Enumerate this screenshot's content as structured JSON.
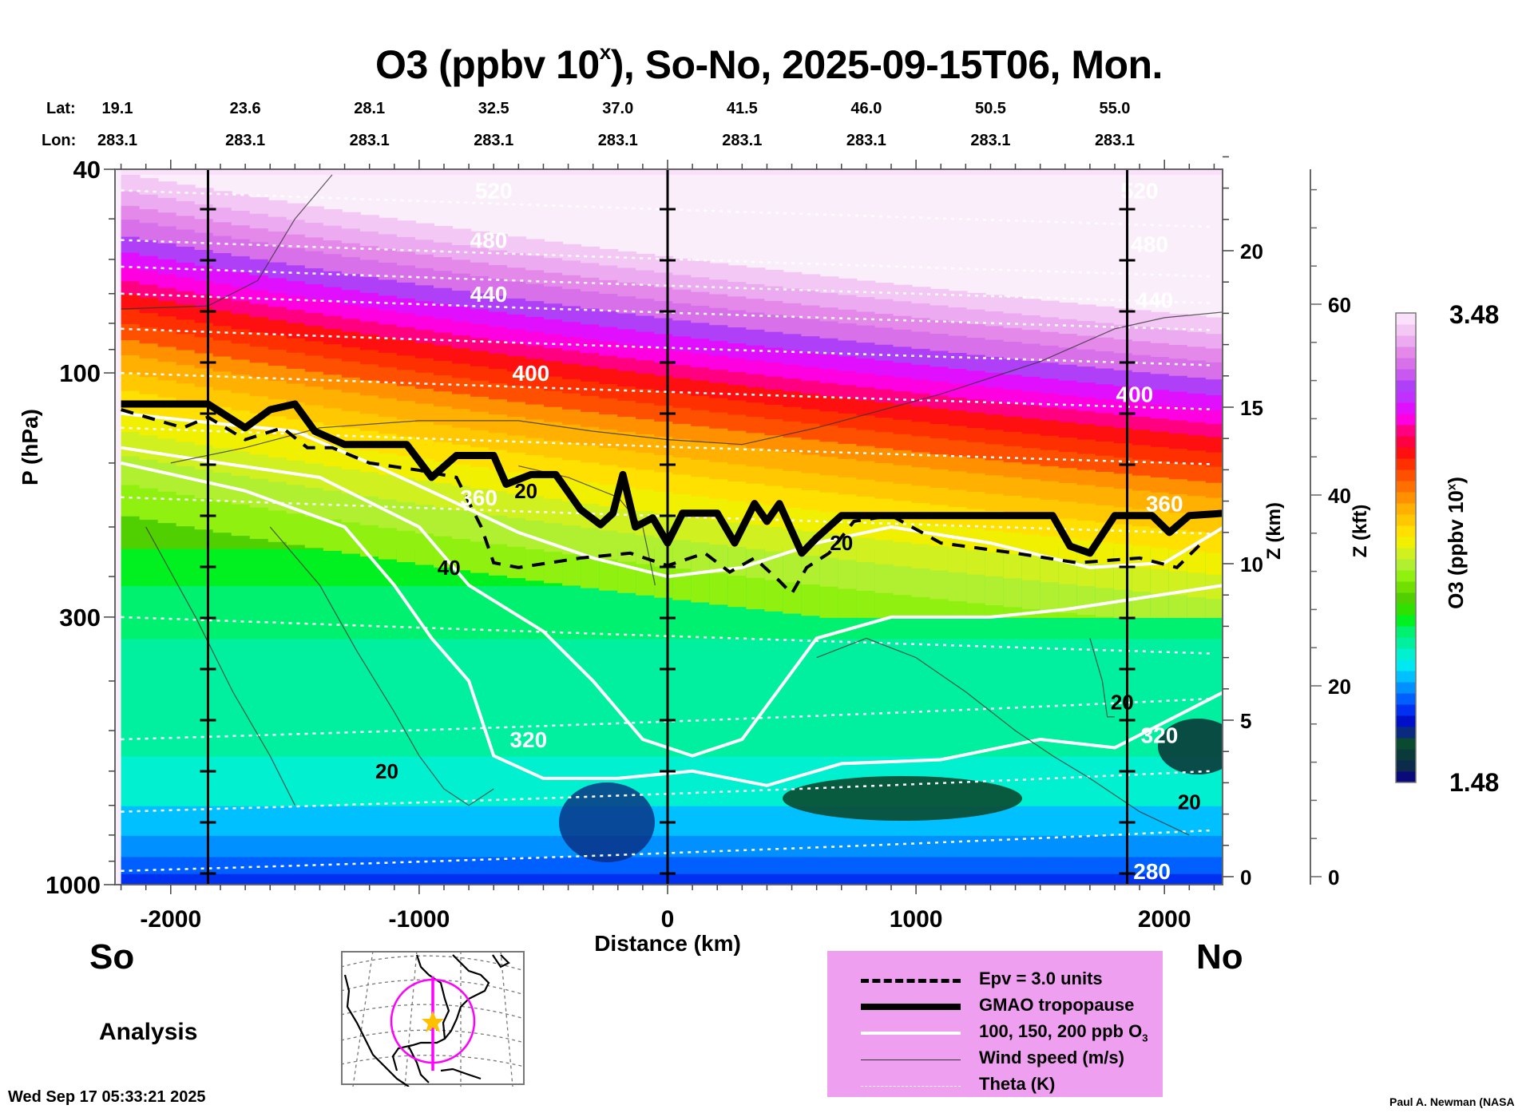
{
  "chart_data": {
    "type": "heatmap",
    "title": "O3 (ppbv 10^x), So-No, 2025-09-15T06, Mon.",
    "title_parts": {
      "main": "O3 (ppbv 10",
      "sup": "x",
      "rest": "), So-No, 2025-09-15T06, Mon."
    },
    "xlabel": "Distance (km)",
    "ylabel": "P (hPa)",
    "y2label": "Z (km)",
    "y3label": "Z (kft)",
    "colorbar_label_main": "O3 (ppbv 10",
    "colorbar_label_sup": "x",
    "colorbar_label_end": ")",
    "xlim": [
      -2200,
      2240
    ],
    "ylim_hpa": [
      1000,
      40
    ],
    "x_ticks": [
      -2000,
      -1000,
      0,
      1000,
      2000
    ],
    "x_tick_labels": [
      "-2000",
      "-1000",
      "0",
      "1000",
      "2000"
    ],
    "y_ticks_hpa": [
      40,
      100,
      300,
      1000
    ],
    "y_tick_labels": [
      "40",
      "100",
      "300",
      "1000"
    ],
    "z_km_ticks": [
      0,
      5,
      10,
      15,
      20
    ],
    "z_km_tick_labels": [
      "0",
      "5",
      "10",
      "15",
      "20"
    ],
    "z_kft_ticks": [
      0,
      20,
      40,
      60
    ],
    "z_kft_tick_labels": [
      "0",
      "20",
      "40",
      "60"
    ],
    "colorbar": {
      "min": 1.48,
      "max": 3.48,
      "min_label": "1.48",
      "max_label": "3.48",
      "colors": [
        "#0a0a7a",
        "#0c2a4a",
        "#0a3a3a",
        "#0a4a30",
        "#0a2a80",
        "#0010c8",
        "#0030f0",
        "#0060ff",
        "#0090ff",
        "#00c0ff",
        "#00e8f0",
        "#00f0d0",
        "#00f0a0",
        "#00f070",
        "#00f020",
        "#30e000",
        "#50d000",
        "#70e000",
        "#90f010",
        "#b0f030",
        "#d0f020",
        "#f0f000",
        "#ffe000",
        "#ffc800",
        "#ffb000",
        "#ff9000",
        "#ff7000",
        "#ff5000",
        "#ff3000",
        "#ff1010",
        "#ff0040",
        "#ff0080",
        "#ff00e0",
        "#e010ff",
        "#c030ff",
        "#b040f8",
        "#c858f0",
        "#d870ea",
        "#e488ea",
        "#ecaaf0",
        "#f4c8f4",
        "#fae0fa"
      ]
    },
    "lat_row_label": "Lat:",
    "lon_row_label": "Lon:",
    "lat_values": [
      "19.1",
      "23.6",
      "28.1",
      "32.5",
      "37.0",
      "41.5",
      "46.0",
      "50.5",
      "55.0"
    ],
    "lon_values": [
      "283.1",
      "283.1",
      "283.1",
      "283.1",
      "283.1",
      "283.1",
      "283.1",
      "283.1",
      "283.1"
    ],
    "latlon_distance_km": [
      -2200,
      -1700,
      -1200,
      -700,
      -200,
      300,
      800,
      1300,
      1800
    ],
    "vertical_marker_lines_km": [
      -1850,
      0,
      1850
    ],
    "theta_contours_K": [
      {
        "value": 280,
        "label": "280",
        "pressure_hpa": 940
      },
      {
        "value": 300,
        "label": "",
        "pressure_hpa": 720
      },
      {
        "value": 320,
        "label": "320",
        "pressure_hpa": 520
      },
      {
        "value": 340,
        "label": "",
        "pressure_hpa": 300
      },
      {
        "value": 360,
        "label": "360",
        "pressure_hpa": 175
      },
      {
        "value": 380,
        "label": "",
        "pressure_hpa": 128
      },
      {
        "value": 400,
        "label": "400",
        "pressure_hpa": 100
      },
      {
        "value": 420,
        "label": "",
        "pressure_hpa": 82
      },
      {
        "value": 440,
        "label": "440",
        "pressure_hpa": 70
      },
      {
        "value": 460,
        "label": "",
        "pressure_hpa": 62
      },
      {
        "value": 480,
        "label": "480",
        "pressure_hpa": 55
      },
      {
        "value": 520,
        "label": "520",
        "pressure_hpa": 44
      }
    ],
    "tropopause_hpa": {
      "x_km": [
        -2200,
        -1850,
        -1700,
        -1600,
        -1500,
        -1420,
        -1300,
        -1050,
        -950,
        -850,
        -700,
        -650,
        -550,
        -450,
        -350,
        -270,
        -220,
        -180,
        -130,
        -60,
        0,
        60,
        200,
        270,
        350,
        400,
        450,
        540,
        600,
        700,
        900,
        1300,
        1550,
        1620,
        1700,
        1800,
        1860,
        1950,
        2020,
        2100,
        2240
      ],
      "p_hpa": [
        115,
        115,
        128,
        118,
        115,
        130,
        138,
        138,
        160,
        145,
        145,
        165,
        158,
        158,
        185,
        198,
        188,
        158,
        200,
        192,
        215,
        188,
        188,
        215,
        180,
        195,
        180,
        225,
        210,
        190,
        190,
        190,
        190,
        218,
        225,
        190,
        190,
        190,
        205,
        190,
        188
      ]
    },
    "epv_3_hpa": {
      "x_km": [
        -2200,
        -1950,
        -1850,
        -1700,
        -1550,
        -1450,
        -1350,
        -1200,
        -1000,
        -850,
        -750,
        -700,
        -600,
        -350,
        -150,
        0,
        150,
        250,
        350,
        450,
        500,
        560,
        650,
        750,
        900,
        1100,
        1400,
        1650,
        1800,
        1900,
        2050,
        2150
      ],
      "p_hpa": [
        118,
        128,
        122,
        135,
        128,
        140,
        140,
        150,
        155,
        160,
        200,
        235,
        240,
        230,
        225,
        238,
        225,
        245,
        230,
        255,
        270,
        240,
        225,
        195,
        190,
        215,
        225,
        235,
        232,
        230,
        240,
        215
      ]
    },
    "ozone_contours_ppb": [
      100,
      150,
      200
    ],
    "wind_speed_labels_ms": [
      "20",
      "20",
      "20",
      "20",
      "40",
      "20"
    ],
    "annotations": {
      "left": "So",
      "right": "No",
      "analysis": "Analysis"
    },
    "grid": false
  },
  "legend": {
    "items": [
      {
        "label": "Epv = 3.0 units",
        "style": "dashed-thick"
      },
      {
        "label": "GMAO tropopause",
        "style": "solid-very-thick"
      },
      {
        "label": "100, 150, 200 ppb O",
        "sub": "3",
        "style": "solid-white"
      },
      {
        "label": "Wind speed (m/s)",
        "style": "solid-thin"
      },
      {
        "label": "Theta (K)",
        "style": "dotted-white"
      }
    ]
  },
  "inset_map": {
    "description": "North America map with magenta cross-section line and circle, gold star at center",
    "line_color": "#ff00ff",
    "star_color": "#ffc000"
  },
  "footer": {
    "timestamp": "Wed Sep 17 05:33:21 2025",
    "credit": "Paul A. Newman (NASA"
  }
}
